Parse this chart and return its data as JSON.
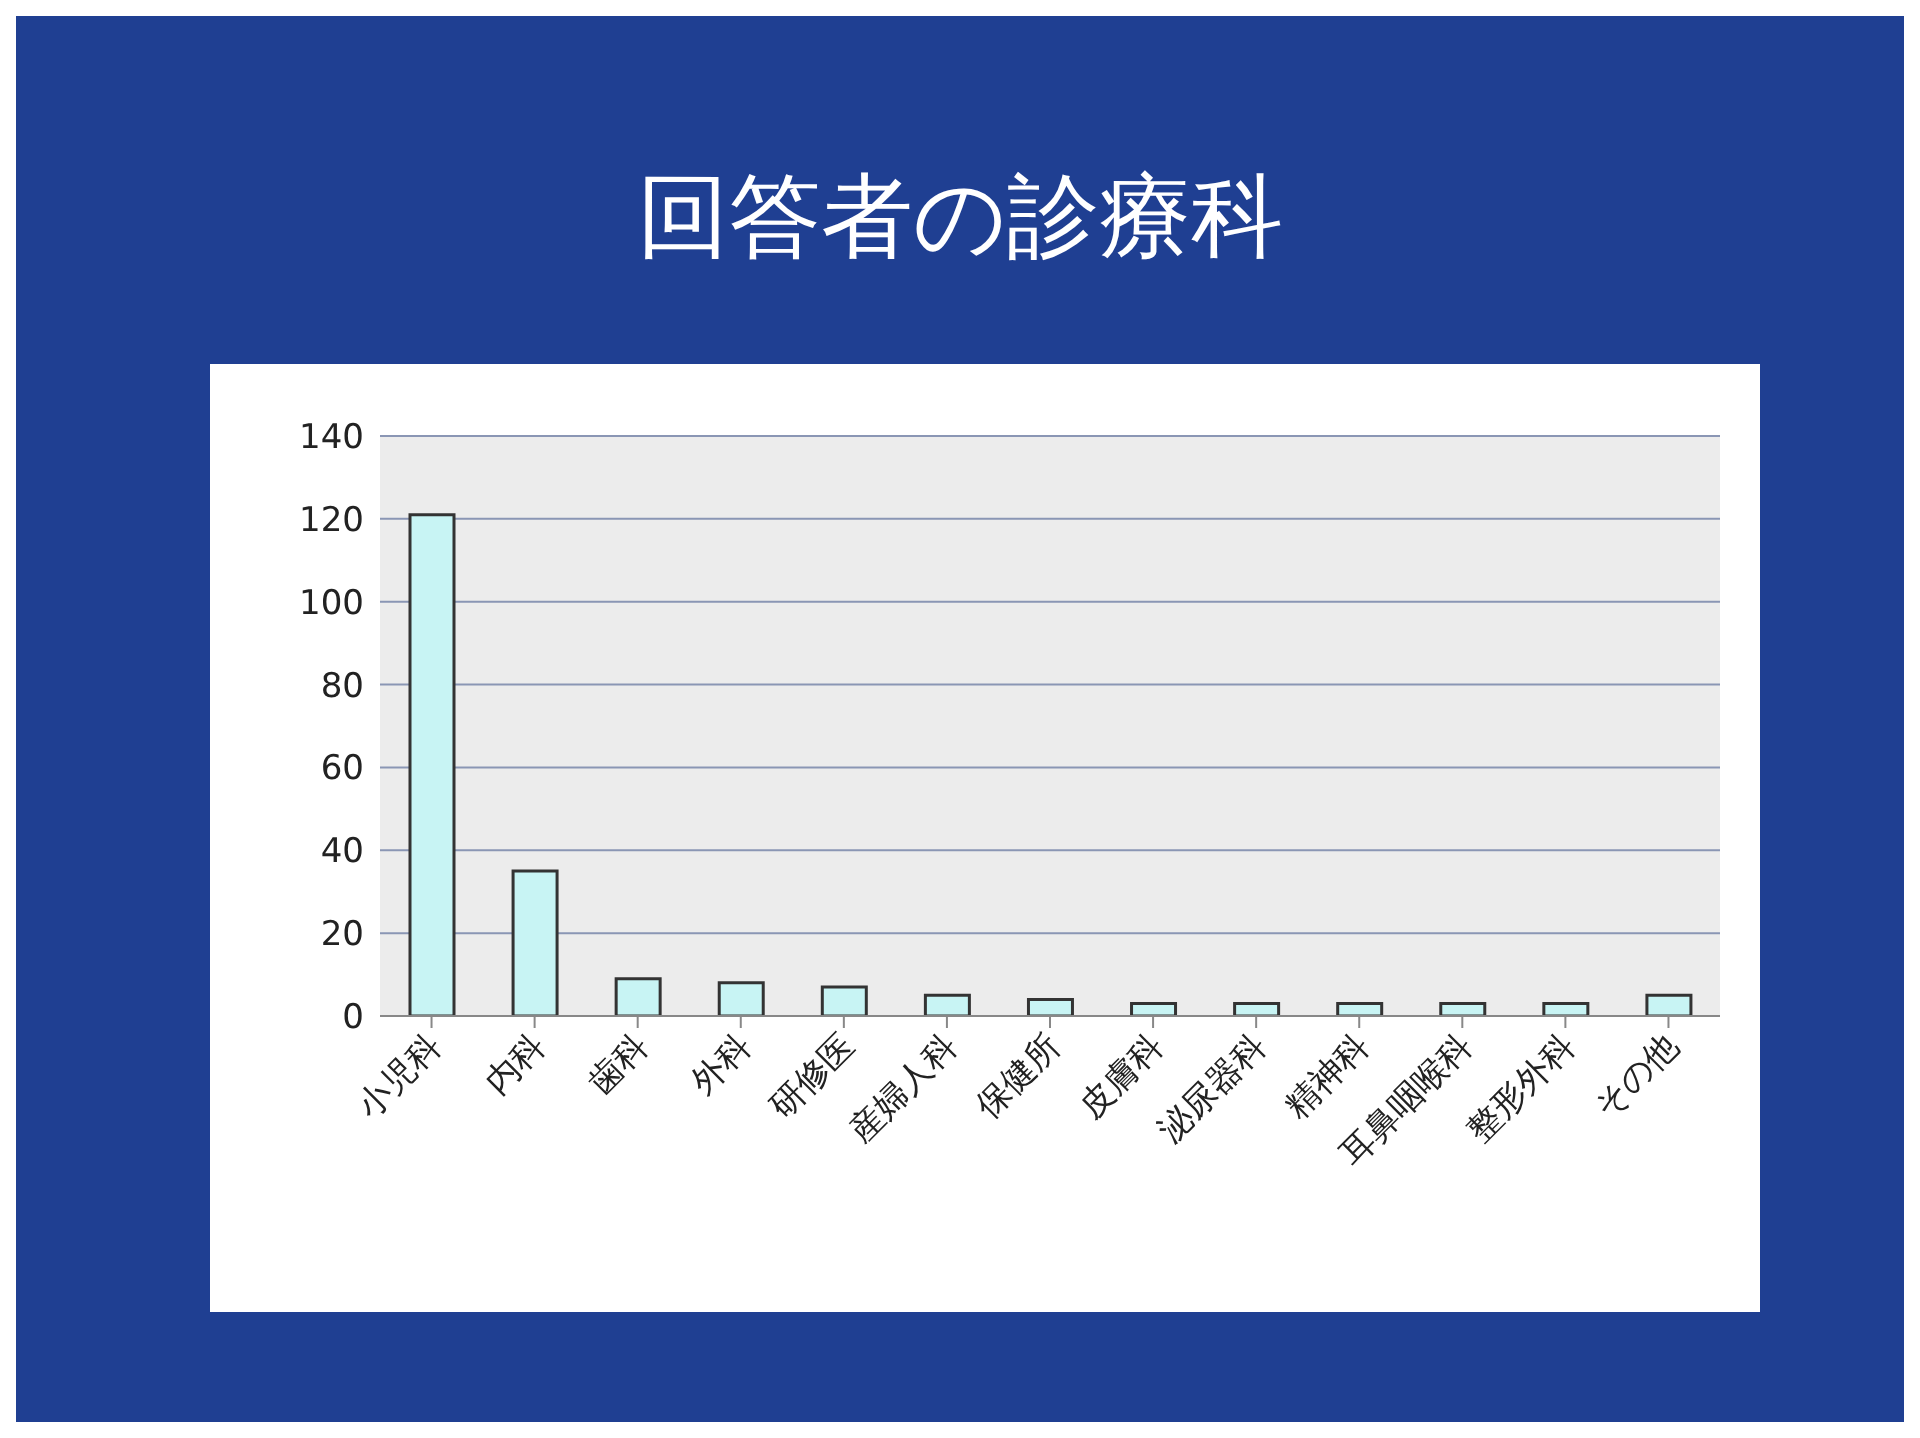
{
  "chart_data": {
    "type": "bar",
    "title": "回答者の診療科",
    "categories": [
      "小児科",
      "内科",
      "歯科",
      "外科",
      "研修医",
      "産婦人科",
      "保健所",
      "皮膚科",
      "泌尿器科",
      "精神科",
      "耳鼻咽喉科",
      "整形外科",
      "その他"
    ],
    "values": [
      121,
      35,
      9,
      8,
      7,
      5,
      4,
      3,
      3,
      3,
      3,
      3,
      5
    ],
    "color": "#c8f4f4",
    "ylim": [
      0,
      140
    ],
    "yticks": [
      0,
      20,
      40,
      60,
      80,
      100,
      120,
      140
    ],
    "grid": "y",
    "legend": false
  }
}
